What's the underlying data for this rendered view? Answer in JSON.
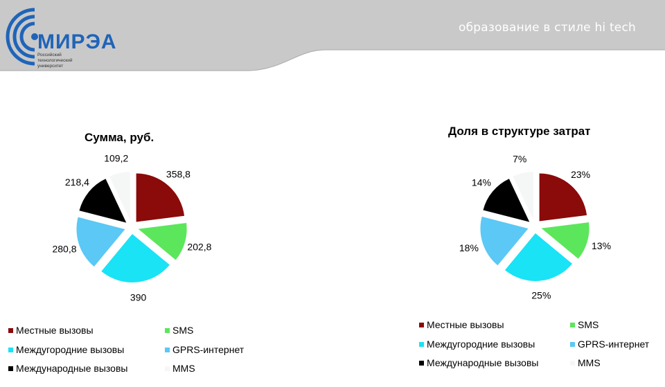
{
  "header": {
    "tagline": "образование в стиле hi tech",
    "logo_text": "МИРЭА",
    "logo_subtitle": "Российский\nтехнологический\nуниверситет",
    "band_color": "#c9c9c9",
    "logo_color": "#1f64b8"
  },
  "legend_items": [
    {
      "label": "Местные вызовы",
      "color": "#8b0a0a"
    },
    {
      "label": "SMS",
      "color": "#5ce65c"
    },
    {
      "label": "Междугородние вызовы",
      "color": "#19e3f5"
    },
    {
      "label": "GPRS-интернет",
      "color": "#5bc8f5"
    },
    {
      "label": "Международные вызовы",
      "color": "#000000"
    },
    {
      "label": "MMS",
      "color": "#f5f7f7"
    }
  ],
  "chart_data": [
    {
      "type": "pie",
      "title": "Сумма, руб.",
      "categories": [
        "Местные вызовы",
        "SMS",
        "Междугородние вызовы",
        "GPRS-интернет",
        "Международные вызовы",
        "MMS"
      ],
      "values": [
        358.8,
        202.8,
        390,
        280.8,
        218.4,
        109.2
      ],
      "labels": [
        "358,8",
        "202,8",
        "390",
        "280,8",
        "218,4",
        "109,2"
      ],
      "exploded": true,
      "legend": "bottom"
    },
    {
      "type": "pie",
      "title": "Доля в структуре затрат",
      "categories": [
        "Местные вызовы",
        "SMS",
        "Междугородние вызовы",
        "GPRS-интернет",
        "Международные вызовы",
        "MMS"
      ],
      "values": [
        23,
        13,
        25,
        18,
        14,
        7
      ],
      "labels": [
        "23%",
        "13%",
        "25%",
        "18%",
        "14%",
        "7%"
      ],
      "exploded": true,
      "legend": "bottom"
    }
  ]
}
